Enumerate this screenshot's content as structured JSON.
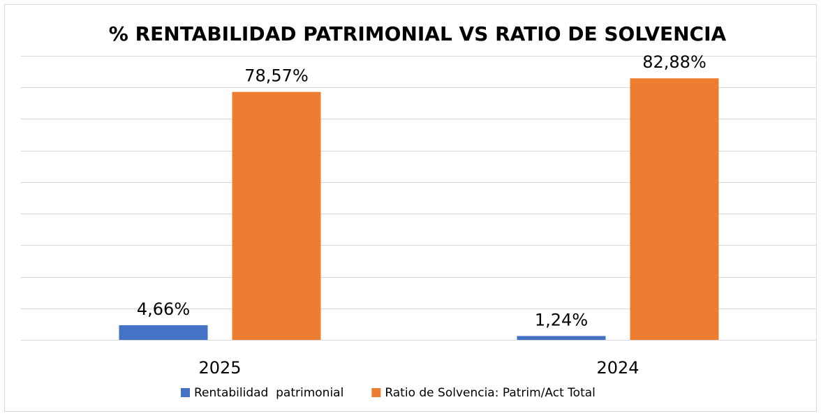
{
  "chart_data": {
    "type": "bar",
    "title": "% RENTABILIDAD PATRIMONIAL VS RATIO DE SOLVENCIA",
    "categories": [
      "2025",
      "2024"
    ],
    "series": [
      {
        "name": "Rentabilidad  patrimonial",
        "color": "#4472c4",
        "values": [
          4.66,
          1.24
        ],
        "value_labels": [
          "4,66%",
          "1,24%"
        ]
      },
      {
        "name": "Ratio de Solvencia: Patrim/Act Total",
        "color": "#ed7d31",
        "values": [
          78.57,
          82.88
        ],
        "value_labels": [
          "78,57%",
          "82,88%"
        ]
      }
    ],
    "ylim": [
      0,
      90
    ],
    "yticks": [
      0,
      10,
      20,
      30,
      40,
      50,
      60,
      70,
      80,
      90
    ],
    "grid": true,
    "legend": "bottom"
  }
}
